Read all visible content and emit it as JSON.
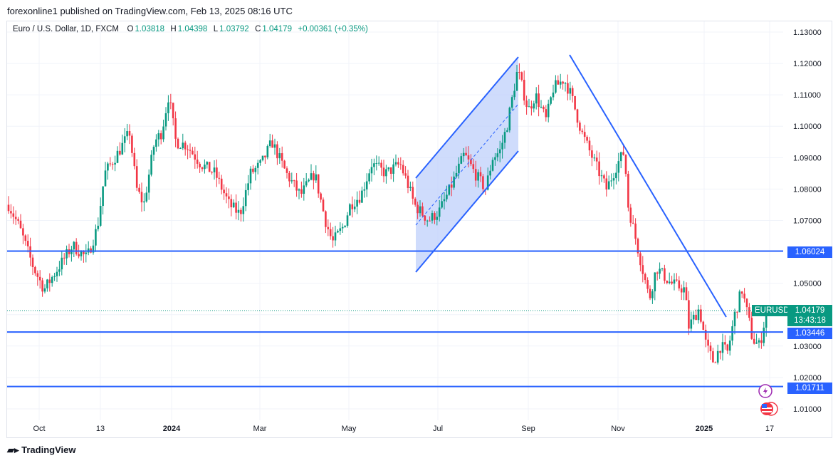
{
  "header": {
    "published": "forexonline1 published on TradingView.com, Feb 13, 2025 08:16 UTC"
  },
  "legend": {
    "symbol": "Euro / U.S. Dollar, 1D, FXCM",
    "o_label": "O",
    "o": "1.03818",
    "h_label": "H",
    "h": "1.04398",
    "l_label": "L",
    "l": "1.03792",
    "c_label": "C",
    "c": "1.04179",
    "change": "+0.00361 (+0.35%)"
  },
  "tags": {
    "symbol": "EURUSD",
    "price": "1.04179",
    "countdown": "13:43:18",
    "level1": "1.06024",
    "level2": "1.03446",
    "level3": "1.01711"
  },
  "footer": {
    "brand": "TradingView"
  },
  "colors": {
    "up": "#089981",
    "down": "#f23645",
    "line": "#2962ff",
    "channel_fill": "#bbcdfb"
  },
  "chart_data": {
    "type": "candlestick",
    "symbol": "EURUSD",
    "ylim": [
      1.005,
      1.1335
    ],
    "yticks": [
      1.13,
      1.12,
      1.11,
      1.1,
      1.09,
      1.08,
      1.07,
      1.06,
      1.05,
      1.04,
      1.03,
      1.02,
      1.01
    ],
    "ytick_labels": [
      "1.13000",
      "1.12000",
      "1.11000",
      "1.10000",
      "1.09000",
      "1.08000",
      "1.07000",
      "1.05000",
      "1.03000",
      "1.02000",
      "1.01000"
    ],
    "xtick_labels": [
      "Oct",
      "13",
      "2024",
      "Mar",
      "May",
      "Jul",
      "Sep",
      "Nov",
      "2025",
      "17"
    ],
    "horizontal_levels": [
      1.06024,
      1.03446,
      1.01711
    ],
    "last_price": 1.04179,
    "path": [
      [
        0,
        1.075
      ],
      [
        15,
        1.068
      ],
      [
        35,
        1.055
      ],
      [
        50,
        1.048
      ],
      [
        70,
        1.055
      ],
      [
        90,
        1.062
      ],
      [
        110,
        1.058
      ],
      [
        125,
        1.068
      ],
      [
        135,
        1.085
      ],
      [
        155,
        1.092
      ],
      [
        170,
        1.098
      ],
      [
        180,
        1.08
      ],
      [
        190,
        1.075
      ],
      [
        205,
        1.095
      ],
      [
        215,
        1.098
      ],
      [
        225,
        1.11
      ],
      [
        235,
        1.095
      ],
      [
        250,
        1.094
      ],
      [
        270,
        1.088
      ],
      [
        290,
        1.085
      ],
      [
        310,
        1.075
      ],
      [
        325,
        1.072
      ],
      [
        340,
        1.085
      ],
      [
        355,
        1.088
      ],
      [
        370,
        1.095
      ],
      [
        390,
        1.085
      ],
      [
        410,
        1.078
      ],
      [
        430,
        1.085
      ],
      [
        445,
        1.07
      ],
      [
        455,
        1.063
      ],
      [
        470,
        1.068
      ],
      [
        480,
        1.075
      ],
      [
        495,
        1.078
      ],
      [
        510,
        1.088
      ],
      [
        530,
        1.085
      ],
      [
        550,
        1.088
      ],
      [
        560,
        1.082
      ],
      [
        570,
        1.075
      ],
      [
        590,
        1.07
      ],
      [
        605,
        1.073
      ],
      [
        620,
        1.08
      ],
      [
        640,
        1.091
      ],
      [
        655,
        1.085
      ],
      [
        670,
        1.08
      ],
      [
        680,
        1.09
      ],
      [
        690,
        1.092
      ],
      [
        700,
        1.1
      ],
      [
        715,
        1.118
      ],
      [
        730,
        1.105
      ],
      [
        740,
        1.11
      ],
      [
        755,
        1.102
      ],
      [
        765,
        1.112
      ],
      [
        780,
        1.115
      ],
      [
        790,
        1.11
      ],
      [
        805,
        1.098
      ],
      [
        820,
        1.09
      ],
      [
        840,
        1.08
      ],
      [
        855,
        1.088
      ],
      [
        865,
        1.092
      ],
      [
        870,
        1.075
      ],
      [
        880,
        1.065
      ],
      [
        890,
        1.055
      ],
      [
        900,
        1.045
      ],
      [
        910,
        1.055
      ],
      [
        930,
        1.05
      ],
      [
        950,
        1.048
      ],
      [
        955,
        1.036
      ],
      [
        970,
        1.042
      ],
      [
        980,
        1.03
      ],
      [
        990,
        1.025
      ],
      [
        1000,
        1.03
      ],
      [
        1010,
        1.028
      ],
      [
        1020,
        1.04
      ],
      [
        1030,
        1.048
      ],
      [
        1040,
        1.038
      ],
      [
        1045,
        1.032
      ],
      [
        1055,
        1.03
      ],
      [
        1065,
        1.0418
      ]
    ]
  }
}
